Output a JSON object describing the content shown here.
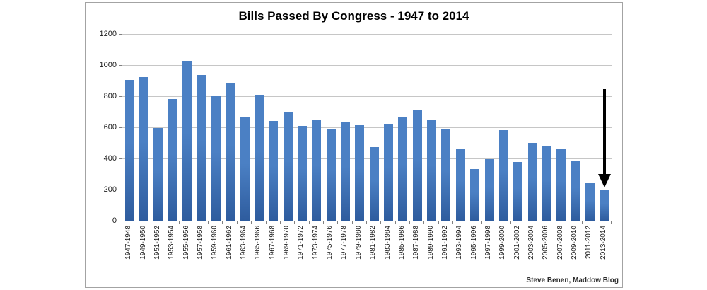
{
  "attribution": "Steve Benen, Maddow Blog",
  "chart_data": {
    "type": "bar",
    "title": "Bills Passed By Congress - 1947 to 2014",
    "categories": [
      "1947-1948",
      "1949-1950",
      "1951-1952",
      "1953-1954",
      "1955-1956",
      "1957-1958",
      "1959-1960",
      "1961-1962",
      "1963-1964",
      "1965-1966",
      "1967-1968",
      "1969-1970",
      "1971-1972",
      "1973-1974",
      "1975-1976",
      "1977-1978",
      "1979-1980",
      "1981-1982",
      "1983-1984",
      "1985-1986",
      "1987-1988",
      "1989-1990",
      "1991-1992",
      "1993-1994",
      "1995-1996",
      "1997-1998",
      "1999-2000",
      "2001-2002",
      "2003-2004",
      "2005-2006",
      "2007-2008",
      "2009-2010",
      "2011-2012",
      "2013-2014"
    ],
    "values": [
      906,
      921,
      594,
      781,
      1028,
      936,
      800,
      885,
      666,
      810,
      640,
      695,
      607,
      649,
      588,
      633,
      613,
      473,
      623,
      664,
      713,
      650,
      590,
      465,
      333,
      394,
      580,
      377,
      498,
      482,
      460,
      383,
      240,
      200
    ],
    "xlabel": "",
    "ylabel": "",
    "ylim": [
      0,
      1200
    ],
    "yticks": [
      0,
      200,
      400,
      600,
      800,
      1000,
      1200
    ],
    "grid": true,
    "legend": "none",
    "bar_color_top": "#4b80c4",
    "bar_color_bottom": "#2e5c9e",
    "annotation": {
      "type": "down-arrow",
      "points_at": "2013-2014",
      "color": "#000000"
    }
  }
}
